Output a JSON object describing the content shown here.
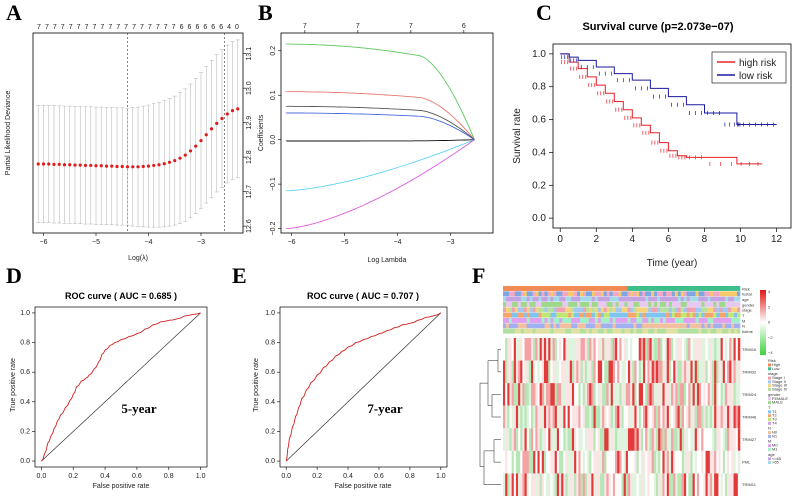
{
  "panels": [
    {
      "letter": "A"
    },
    {
      "letter": "B"
    },
    {
      "letter": "C"
    },
    {
      "letter": "D"
    },
    {
      "letter": "E"
    },
    {
      "letter": "F"
    }
  ],
  "chart_data": [
    {
      "id": "A",
      "type": "scatter",
      "xlabel": "Log(λ)",
      "ylabel": "Partial Likelihood Deviance",
      "xlim": [
        -6.2,
        -2.2
      ],
      "ylim": [
        12.58,
        13.16
      ],
      "xticks": [
        -6,
        -5,
        -4,
        -3
      ],
      "xtick_labels": [
        "−6",
        "−5",
        "−4",
        "−3"
      ],
      "yticks": [
        12.6,
        12.7,
        12.8,
        12.9,
        13.0,
        13.1
      ],
      "ytick_labels": [
        "12.6",
        "12.7",
        "12.8",
        "12.9",
        "13.0",
        "13.1"
      ],
      "top_counts": [
        "7",
        "7",
        "7",
        "7",
        "7",
        "7",
        "7",
        "7",
        "7",
        "7",
        "7",
        "7",
        "7",
        "7",
        "7",
        "7",
        "7",
        "7",
        "6",
        "6",
        "6",
        "6",
        "6",
        "6",
        "4",
        "0"
      ],
      "vlines": [
        -4.4,
        -2.55
      ],
      "x": [
        -6.1,
        -6.0,
        -5.9,
        -5.8,
        -5.7,
        -5.6,
        -5.5,
        -5.4,
        -5.3,
        -5.2,
        -5.1,
        -5.0,
        -4.9,
        -4.8,
        -4.7,
        -4.6,
        -4.5,
        -4.4,
        -4.3,
        -4.2,
        -4.1,
        -4.0,
        -3.9,
        -3.8,
        -3.7,
        -3.6,
        -3.5,
        -3.4,
        -3.3,
        -3.2,
        -3.1,
        -3.0,
        -2.9,
        -2.8,
        -2.7,
        -2.6,
        -2.5,
        -2.4,
        -2.3
      ],
      "y": [
        12.78,
        12.78,
        12.78,
        12.779,
        12.779,
        12.778,
        12.778,
        12.777,
        12.777,
        12.776,
        12.776,
        12.775,
        12.775,
        12.774,
        12.774,
        12.773,
        12.773,
        12.772,
        12.772,
        12.772,
        12.773,
        12.774,
        12.776,
        12.778,
        12.781,
        12.785,
        12.79,
        12.797,
        12.806,
        12.818,
        12.832,
        12.848,
        12.865,
        12.882,
        12.898,
        12.912,
        12.925,
        12.935,
        12.94
      ],
      "err": [
        0.17,
        0.17,
        0.17,
        0.17,
        0.17,
        0.17,
        0.17,
        0.17,
        0.17,
        0.17,
        0.17,
        0.17,
        0.17,
        0.17,
        0.17,
        0.17,
        0.17,
        0.17,
        0.172,
        0.173,
        0.175,
        0.177,
        0.179,
        0.181,
        0.183,
        0.185,
        0.187,
        0.19,
        0.192,
        0.194,
        0.196,
        0.197,
        0.198,
        0.199,
        0.199,
        0.2,
        0.2,
        0.2,
        0.2
      ]
    },
    {
      "id": "B",
      "type": "line",
      "xlabel": "Log Lambda",
      "ylabel": "Coefficients",
      "xlim": [
        -6.2,
        -2.2
      ],
      "ylim": [
        -0.21,
        0.24
      ],
      "xticks": [
        -6,
        -5,
        -4,
        -3
      ],
      "xtick_labels": [
        "−6",
        "−5",
        "−4",
        "−3"
      ],
      "yticks": [
        -0.2,
        -0.1,
        0.0,
        0.1,
        0.2
      ],
      "ytick_labels": [
        "−0.2",
        "−0.1",
        "0.0",
        "0.1",
        "0.2"
      ],
      "top_ticks": [
        -6,
        -5,
        -4,
        -3
      ],
      "top_labels": [
        "7",
        "7",
        "7",
        "6"
      ],
      "series": [
        {
          "name": "green",
          "color": "#5cc85c",
          "start": 0.215
        },
        {
          "name": "salmon",
          "color": "#e8776f",
          "start": 0.108
        },
        {
          "name": "dark",
          "color": "#555555",
          "start": 0.075
        },
        {
          "name": "blue",
          "color": "#4a6adf",
          "start": 0.06
        },
        {
          "name": "black",
          "color": "#111111",
          "start": -0.003
        },
        {
          "name": "cyan",
          "color": "#5fd3f0",
          "start": -0.115
        },
        {
          "name": "magenta",
          "color": "#e05ae0",
          "start": -0.2
        }
      ]
    },
    {
      "id": "C",
      "type": "line",
      "title": "Survival curve (p=2.073e−07)",
      "xlabel": "Time (year)",
      "ylabel": "Survival rate",
      "xlim": [
        0,
        12.5
      ],
      "ylim": [
        0,
        1
      ],
      "xticks": [
        0,
        2,
        4,
        6,
        8,
        10,
        12
      ],
      "xtick_labels": [
        "0",
        "2",
        "4",
        "6",
        "8",
        "10",
        "12"
      ],
      "yticks": [
        0,
        0.2,
        0.4,
        0.6,
        0.8,
        1.0
      ],
      "ytick_labels": [
        "0.0",
        "0.2",
        "0.4",
        "0.6",
        "0.8",
        "1.0"
      ],
      "legend": [
        "high risk",
        "low risk"
      ],
      "legend_position": "top-right",
      "series": [
        {
          "name": "high risk",
          "color": "#e8202a",
          "x": [
            0,
            0.5,
            1,
            1.5,
            2,
            2.5,
            3,
            3.5,
            4,
            4.5,
            5,
            5.5,
            6,
            6.5,
            7,
            8,
            9.8,
            11.2
          ],
          "y": [
            1.0,
            0.95,
            0.91,
            0.86,
            0.81,
            0.76,
            0.71,
            0.66,
            0.61,
            0.565,
            0.52,
            0.46,
            0.41,
            0.38,
            0.37,
            0.37,
            0.33,
            0.33
          ]
        },
        {
          "name": "low risk",
          "color": "#1a1aa0",
          "x": [
            0,
            0.5,
            1,
            2,
            3,
            4,
            5,
            6,
            7,
            8,
            9,
            9.8,
            10,
            11,
            12
          ],
          "y": [
            1.0,
            0.98,
            0.96,
            0.92,
            0.88,
            0.84,
            0.79,
            0.74,
            0.69,
            0.64,
            0.64,
            0.57,
            0.57,
            0.57,
            0.57
          ]
        }
      ]
    },
    {
      "id": "D",
      "type": "line",
      "title": "ROC curve ( AUC =  0.685 )",
      "xlabel": "False positive rate",
      "ylabel": "True positive rate",
      "xlim": [
        0,
        1
      ],
      "ylim": [
        0,
        1
      ],
      "xticks": [
        0,
        0.2,
        0.4,
        0.6,
        0.8,
        1.0
      ],
      "xtick_labels": [
        "0.0",
        "0.2",
        "0.4",
        "0.6",
        "0.8",
        "1.0"
      ],
      "yticks": [
        0,
        0.2,
        0.4,
        0.6,
        0.8,
        1.0
      ],
      "ytick_labels": [
        "0.0",
        "0.2",
        "0.4",
        "0.6",
        "0.8",
        "1.0"
      ],
      "annotation": "5-year",
      "x": [
        0,
        0.02,
        0.04,
        0.06,
        0.08,
        0.1,
        0.12,
        0.15,
        0.18,
        0.2,
        0.22,
        0.25,
        0.28,
        0.3,
        0.33,
        0.36,
        0.38,
        0.4,
        0.43,
        0.46,
        0.5,
        0.55,
        0.6,
        0.65,
        0.7,
        0.75,
        0.8,
        0.85,
        0.9,
        0.95,
        1.0
      ],
      "y": [
        0,
        0.05,
        0.12,
        0.17,
        0.22,
        0.27,
        0.31,
        0.36,
        0.41,
        0.45,
        0.5,
        0.54,
        0.56,
        0.58,
        0.62,
        0.67,
        0.72,
        0.75,
        0.78,
        0.8,
        0.82,
        0.84,
        0.86,
        0.89,
        0.92,
        0.94,
        0.95,
        0.96,
        0.98,
        0.99,
        1.0
      ]
    },
    {
      "id": "E",
      "type": "line",
      "title": "ROC curve ( AUC =  0.707 )",
      "xlabel": "False positive rate",
      "ylabel": "True positive rate",
      "xlim": [
        0,
        1
      ],
      "ylim": [
        0,
        1
      ],
      "xticks": [
        0,
        0.2,
        0.4,
        0.6,
        0.8,
        1.0
      ],
      "xtick_labels": [
        "0.0",
        "0.2",
        "0.4",
        "0.6",
        "0.8",
        "1.0"
      ],
      "yticks": [
        0,
        0.2,
        0.4,
        0.6,
        0.8,
        1.0
      ],
      "ytick_labels": [
        "0.0",
        "0.2",
        "0.4",
        "0.6",
        "0.8",
        "1.0"
      ],
      "annotation": "7-year",
      "x": [
        0,
        0.01,
        0.02,
        0.04,
        0.06,
        0.08,
        0.1,
        0.13,
        0.16,
        0.2,
        0.24,
        0.28,
        0.32,
        0.36,
        0.4,
        0.45,
        0.5,
        0.55,
        0.6,
        0.65,
        0.7,
        0.75,
        0.8,
        0.85,
        0.9,
        0.95,
        1.0
      ],
      "y": [
        0,
        0.08,
        0.15,
        0.23,
        0.3,
        0.36,
        0.42,
        0.48,
        0.53,
        0.58,
        0.63,
        0.67,
        0.71,
        0.74,
        0.77,
        0.8,
        0.82,
        0.84,
        0.86,
        0.88,
        0.9,
        0.92,
        0.93,
        0.95,
        0.97,
        0.98,
        1.0
      ]
    },
    {
      "id": "F",
      "type": "heatmap",
      "rows": [
        "TRIM16",
        "TRIM32",
        "TRIM24",
        "TRIM46",
        "TRIM27",
        "PML",
        "TRIM11"
      ],
      "annotation_tracks": [
        "Risk",
        "fustat",
        "age",
        "gender",
        "stage",
        "T",
        "M",
        "N",
        "futime"
      ],
      "legend_groups": [
        "Risk",
        "stage",
        "gender",
        "T",
        "N",
        "M",
        "age"
      ],
      "legend_entries": [
        "High",
        "Low",
        "Stage I",
        "Stage II",
        "Stage III",
        "Stage IV",
        "FEMALE",
        "MALE",
        "T1",
        "T2",
        "T3",
        "T4",
        "N0",
        "N1",
        "M0",
        "M1",
        "<=65",
        ">65"
      ],
      "colorbar_ticks": [
        "4",
        "2",
        "0",
        "−2",
        "−4"
      ],
      "low_color": "#3ed23e",
      "mid_color": "#ffffff",
      "high_color": "#e01818"
    }
  ]
}
